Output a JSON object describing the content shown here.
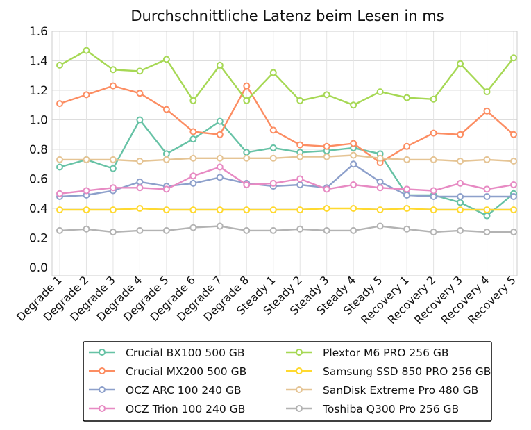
{
  "chart_data": {
    "type": "line",
    "title": "Durchschnittliche Latenz beim Lesen in ms",
    "xlabel": "",
    "ylabel": "",
    "ylim": [
      0,
      1.6
    ],
    "yticks": [
      "0.0",
      "0.2",
      "0.4",
      "0.6",
      "0.8",
      "1.0",
      "1.2",
      "1.4",
      "1.6"
    ],
    "grid": true,
    "legend_position": "bottom",
    "categories": [
      "Degrade 1",
      "Degrade 2",
      "Degrade 3",
      "Degrade 4",
      "Degrade 5",
      "Degrade 6",
      "Degrade 7",
      "Degrade 8",
      "Steady 1",
      "Steady 2",
      "Steady 3",
      "Steady 4",
      "Steady 5",
      "Recovery 1",
      "Recovery 2",
      "Recovery 3",
      "Recovery 4",
      "Recovery 5"
    ],
    "series": [
      {
        "name": "Crucial BX100 500 GB",
        "color": "#66c2a5",
        "values": [
          0.68,
          0.73,
          0.67,
          1.0,
          0.77,
          0.87,
          0.99,
          0.78,
          0.81,
          0.78,
          0.79,
          0.81,
          0.77,
          0.49,
          0.49,
          0.44,
          0.35,
          0.5
        ]
      },
      {
        "name": "Crucial MX200 500 GB",
        "color": "#fc8d62",
        "values": [
          1.11,
          1.17,
          1.23,
          1.18,
          1.07,
          0.92,
          0.9,
          1.23,
          0.93,
          0.83,
          0.82,
          0.84,
          0.71,
          0.82,
          0.91,
          0.9,
          1.06,
          0.9
        ]
      },
      {
        "name": "OCZ ARC 100 240 GB",
        "color": "#8da0cb",
        "values": [
          0.48,
          0.49,
          0.52,
          0.58,
          0.55,
          0.57,
          0.61,
          0.57,
          0.55,
          0.56,
          0.54,
          0.7,
          0.58,
          0.49,
          0.48,
          0.48,
          0.48,
          0.48
        ]
      },
      {
        "name": "OCZ Trion 100 240 GB",
        "color": "#e78ac3",
        "values": [
          0.5,
          0.52,
          0.54,
          0.54,
          0.53,
          0.62,
          0.68,
          0.56,
          0.57,
          0.6,
          0.53,
          0.56,
          0.54,
          0.53,
          0.52,
          0.57,
          0.53,
          0.56
        ]
      },
      {
        "name": "Plextor M6 PRO 256 GB",
        "color": "#a6d854",
        "values": [
          1.37,
          1.47,
          1.34,
          1.33,
          1.41,
          1.13,
          1.37,
          1.13,
          1.32,
          1.13,
          1.17,
          1.1,
          1.19,
          1.15,
          1.14,
          1.38,
          1.19,
          1.42
        ]
      },
      {
        "name": "Samsung SSD 850 PRO 256 GB",
        "color": "#ffd92f",
        "values": [
          0.39,
          0.39,
          0.39,
          0.4,
          0.39,
          0.39,
          0.39,
          0.39,
          0.39,
          0.39,
          0.4,
          0.4,
          0.39,
          0.4,
          0.39,
          0.39,
          0.39,
          0.39
        ]
      },
      {
        "name": "SanDisk Extreme Pro 480 GB",
        "color": "#e5c494",
        "values": [
          0.73,
          0.73,
          0.73,
          0.72,
          0.73,
          0.74,
          0.74,
          0.74,
          0.74,
          0.75,
          0.75,
          0.76,
          0.74,
          0.73,
          0.73,
          0.72,
          0.73,
          0.72
        ]
      },
      {
        "name": "Toshiba Q300 Pro 256 GB",
        "color": "#b3b3b3",
        "values": [
          0.25,
          0.26,
          0.24,
          0.25,
          0.25,
          0.27,
          0.28,
          0.25,
          0.25,
          0.26,
          0.25,
          0.25,
          0.28,
          0.26,
          0.24,
          0.25,
          0.24,
          0.24
        ]
      }
    ]
  }
}
